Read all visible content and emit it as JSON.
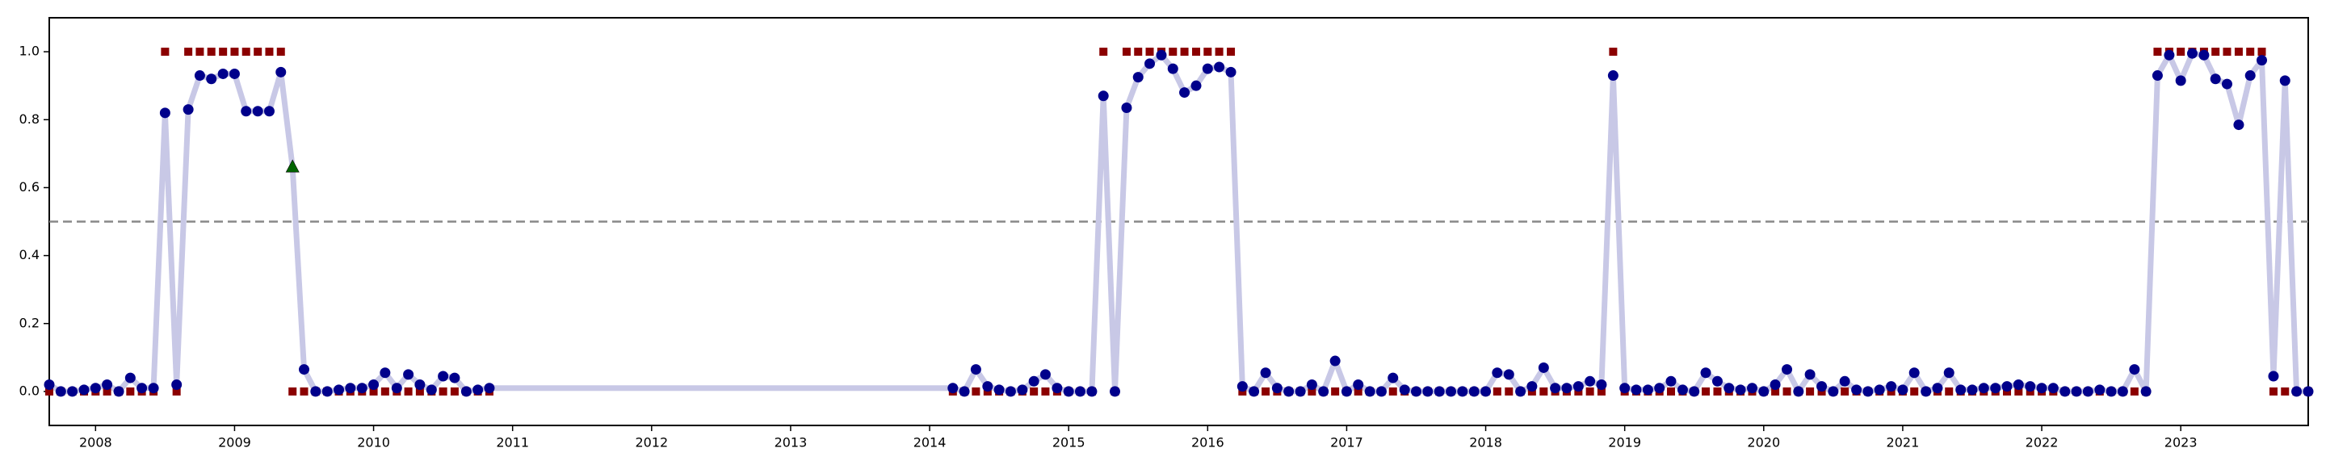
{
  "chart_data": {
    "type": "line",
    "x": [
      2007.667,
      2007.75,
      2007.833,
      2007.917,
      2008,
      2008.083,
      2008.167,
      2008.25,
      2008.333,
      2008.417,
      2008.5,
      2008.583,
      2008.667,
      2008.75,
      2008.833,
      2008.917,
      2009,
      2009.083,
      2009.167,
      2009.25,
      2009.333,
      2009.417,
      2009.5,
      2009.583,
      2009.667,
      2009.75,
      2009.833,
      2009.917,
      2010,
      2010.083,
      2010.167,
      2010.25,
      2010.333,
      2010.417,
      2010.5,
      2010.583,
      2010.667,
      2010.75,
      2010.833,
      2014.167,
      2014.25,
      2014.333,
      2014.417,
      2014.5,
      2014.583,
      2014.667,
      2014.75,
      2014.833,
      2014.917,
      2015,
      2015.083,
      2015.167,
      2015.25,
      2015.333,
      2015.417,
      2015.5,
      2015.583,
      2015.667,
      2015.75,
      2015.833,
      2015.917,
      2016,
      2016.083,
      2016.167,
      2016.25,
      2016.333,
      2016.417,
      2016.5,
      2016.583,
      2016.667,
      2016.75,
      2016.833,
      2016.917,
      2017,
      2017.083,
      2017.167,
      2017.25,
      2017.333,
      2017.417,
      2017.5,
      2017.583,
      2017.667,
      2017.75,
      2017.833,
      2017.917,
      2018,
      2018.083,
      2018.167,
      2018.25,
      2018.333,
      2018.417,
      2018.5,
      2018.583,
      2018.667,
      2018.75,
      2018.833,
      2018.917,
      2019,
      2019.083,
      2019.167,
      2019.25,
      2019.333,
      2019.417,
      2019.5,
      2019.583,
      2019.667,
      2019.75,
      2019.833,
      2019.917,
      2020,
      2020.083,
      2020.167,
      2020.25,
      2020.333,
      2020.417,
      2020.5,
      2020.583,
      2020.667,
      2020.75,
      2020.833,
      2020.917,
      2021,
      2021.083,
      2021.167,
      2021.25,
      2021.333,
      2021.417,
      2021.5,
      2021.583,
      2021.667,
      2021.75,
      2021.833,
      2021.917,
      2022,
      2022.083,
      2022.167,
      2022.25,
      2022.333,
      2022.417,
      2022.5,
      2022.583,
      2022.667,
      2022.75,
      2022.833,
      2022.917,
      2023,
      2023.083,
      2023.167,
      2023.25,
      2023.333,
      2023.417,
      2023.5,
      2023.583,
      2023.667,
      2023.75,
      2023.833,
      2023.917
    ],
    "series": [
      {
        "color": "#8b0000",
        "marker": "square",
        "values": [
          0,
          0,
          0,
          0,
          0,
          0,
          0,
          0,
          0,
          0,
          1,
          0,
          1,
          1,
          1,
          1,
          1,
          1,
          1,
          1,
          1,
          0,
          0,
          0,
          0,
          0,
          0,
          0,
          0,
          0,
          0,
          0,
          0,
          0,
          0,
          0,
          0,
          0,
          0,
          0,
          0,
          0,
          0,
          0,
          0,
          0,
          0,
          0,
          0,
          0,
          0,
          0,
          1,
          0,
          1,
          1,
          1,
          1,
          1,
          1,
          1,
          1,
          1,
          1,
          0,
          0,
          0,
          0,
          0,
          0,
          0,
          0,
          0,
          0,
          0,
          0,
          0,
          0,
          0,
          0,
          0,
          0,
          0,
          0,
          0,
          0,
          0,
          0,
          0,
          0,
          0,
          0,
          0,
          0,
          0,
          0,
          1,
          0,
          0,
          0,
          0,
          0,
          0,
          0,
          0,
          0,
          0,
          0,
          0,
          0,
          0,
          0,
          0,
          0,
          0,
          0,
          0,
          0,
          0,
          0,
          0,
          0,
          0,
          0,
          0,
          0,
          0,
          0,
          0,
          0,
          0,
          0,
          0,
          0,
          0,
          0,
          0,
          0,
          0,
          0,
          0,
          0,
          0,
          1,
          1,
          1,
          1,
          1,
          1,
          1,
          1,
          1,
          1,
          0,
          0,
          0,
          0
        ]
      },
      {
        "color": "#00008b",
        "marker": "circle",
        "line_color": "#c8c8e6",
        "values": [
          0.02,
          0.0,
          0.0,
          0.005,
          0.01,
          0.02,
          0.0,
          0.04,
          0.01,
          0.01,
          0.82,
          0.02,
          0.83,
          0.93,
          0.92,
          0.935,
          0.935,
          0.825,
          0.825,
          0.825,
          0.94,
          0.66,
          0.065,
          0.0,
          0.0,
          0.005,
          0.01,
          0.01,
          0.02,
          0.055,
          0.01,
          0.05,
          0.02,
          0.005,
          0.045,
          0.04,
          0.0,
          0.005,
          0.01,
          0.01,
          0.0,
          0.065,
          0.015,
          0.005,
          0.0,
          0.005,
          0.03,
          0.05,
          0.01,
          0.0,
          0.0,
          0.0,
          0.87,
          0.0,
          0.835,
          0.925,
          0.965,
          0.99,
          0.95,
          0.88,
          0.9,
          0.95,
          0.955,
          0.94,
          0.015,
          0.0,
          0.055,
          0.01,
          0.0,
          0.0,
          0.02,
          0.0,
          0.09,
          0.0,
          0.02,
          0.0,
          0.0,
          0.04,
          0.005,
          0.0,
          0.0,
          0.0,
          0.0,
          0.0,
          0.0,
          0.0,
          0.055,
          0.05,
          0.0,
          0.015,
          0.07,
          0.01,
          0.01,
          0.015,
          0.03,
          0.02,
          0.93,
          0.01,
          0.005,
          0.005,
          0.01,
          0.03,
          0.005,
          0.0,
          0.055,
          0.03,
          0.01,
          0.005,
          0.01,
          0.0,
          0.02,
          0.065,
          0.0,
          0.05,
          0.015,
          0.0,
          0.03,
          0.005,
          0.0,
          0.005,
          0.015,
          0.005,
          0.055,
          0.0,
          0.01,
          0.055,
          0.005,
          0.005,
          0.01,
          0.01,
          0.015,
          0.02,
          0.015,
          0.01,
          0.01,
          0.0,
          0.0,
          0.0,
          0.005,
          0.0,
          0.0,
          0.065,
          0.0,
          0.93,
          0.99,
          0.915,
          0.995,
          0.99,
          0.92,
          0.905,
          0.785,
          0.93,
          0.975,
          0.045,
          0.915,
          0.0,
          0.0
        ]
      },
      {
        "color": "#006400",
        "marker": "triangle",
        "x": [
          2009.417
        ],
        "values": [
          0.66
        ]
      }
    ],
    "hline": 0.5,
    "xlim": [
      2007.667,
      2023.917
    ],
    "xticks": [
      2008,
      2009,
      2010,
      2011,
      2012,
      2013,
      2014,
      2015,
      2016,
      2017,
      2018,
      2019,
      2020,
      2021,
      2022,
      2023
    ],
    "ylim": [
      -0.1,
      1.1
    ],
    "yticks": [
      {
        "value": 0,
        "label": "0.0"
      },
      0.2,
      0.4,
      0.6,
      0.8,
      {
        "value": 1,
        "label": "1.0"
      }
    ]
  }
}
